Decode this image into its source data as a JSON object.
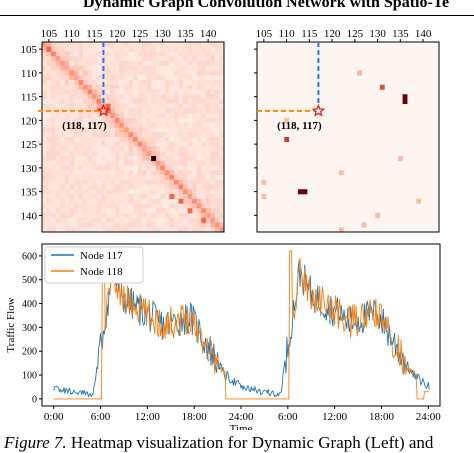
{
  "header_title": "Dynamic Graph Convolution Network with Spatio-Te",
  "caption": {
    "figure_label": "Figure 7.",
    "text": " Heatmap visualization for Dynamic Graph (Left) and"
  },
  "chart_data": [
    {
      "type": "heatmap",
      "panel": "left",
      "x_ticks": [
        "105",
        "110",
        "115",
        "120",
        "125",
        "130",
        "135",
        "140"
      ],
      "y_ticks": [
        "105",
        "110",
        "115",
        "120",
        "125",
        "130",
        "135",
        "140"
      ],
      "range": [
        104,
        143
      ],
      "highlight": {
        "row": 118,
        "col": 117,
        "label": "(118, 117)"
      },
      "colormap": [
        "#fff5f0",
        "#67000d"
      ],
      "description_points": {
        "diagonal_strong": true,
        "dark_cells": [
          [
            128,
            128
          ]
        ],
        "strong_cells": [
          [
            105,
            105
          ],
          [
            118,
            117
          ],
          [
            117,
            118
          ],
          [
            118,
            118
          ],
          [
            136,
            132
          ],
          [
            137,
            134
          ],
          [
            139,
            136
          ],
          [
            141,
            139
          ]
        ]
      }
    },
    {
      "type": "heatmap",
      "panel": "right",
      "x_ticks": [
        "105",
        "110",
        "115",
        "120",
        "125",
        "130",
        "135",
        "140"
      ],
      "y_ticks": [
        "105",
        "110",
        "115",
        "120",
        "125",
        "130",
        "135",
        "140"
      ],
      "range": [
        104,
        143
      ],
      "highlight": {
        "row": 118,
        "col": 117,
        "label": "(118, 117)"
      },
      "colormap": [
        "#fff5f0",
        "#67000d"
      ],
      "cells": [
        {
          "row": 110,
          "col": 126,
          "v": 0.3
        },
        {
          "row": 113,
          "col": 131,
          "v": 0.7
        },
        {
          "row": 115,
          "col": 136,
          "v": 1.0
        },
        {
          "row": 116,
          "col": 136,
          "v": 1.0
        },
        {
          "row": 124,
          "col": 110,
          "v": 0.75
        },
        {
          "row": 120,
          "col": 110,
          "v": 0.25
        },
        {
          "row": 128,
          "col": 135,
          "v": 0.25
        },
        {
          "row": 131,
          "col": 122,
          "v": 0.25
        },
        {
          "row": 133,
          "col": 105,
          "v": 0.25
        },
        {
          "row": 135,
          "col": 113,
          "v": 1.0
        },
        {
          "row": 135,
          "col": 114,
          "v": 1.0
        },
        {
          "row": 136,
          "col": 105,
          "v": 0.25
        },
        {
          "row": 137,
          "col": 139,
          "v": 0.25
        },
        {
          "row": 140,
          "col": 130,
          "v": 0.25
        },
        {
          "row": 142,
          "col": 127,
          "v": 0.25
        },
        {
          "row": 143,
          "col": 122,
          "v": 0.25
        }
      ]
    },
    {
      "type": "line",
      "panel": "bottom",
      "xlabel": "Time",
      "ylabel": "Traffic Flow",
      "x_ticks": [
        "0:00",
        "6:00",
        "12:00",
        "18:00",
        "24:00",
        "6:00",
        "12:00",
        "18:00",
        "24:00"
      ],
      "y_ticks": [
        0,
        100,
        200,
        300,
        400,
        500,
        600
      ],
      "ylim": [
        -30,
        650
      ],
      "xlim_hours": [
        -1.5,
        49.5
      ],
      "series": [
        {
          "name": "Node 117",
          "color": "#1f77b4"
        },
        {
          "name": "Node 118",
          "color": "#ff7f0e"
        }
      ]
    }
  ]
}
